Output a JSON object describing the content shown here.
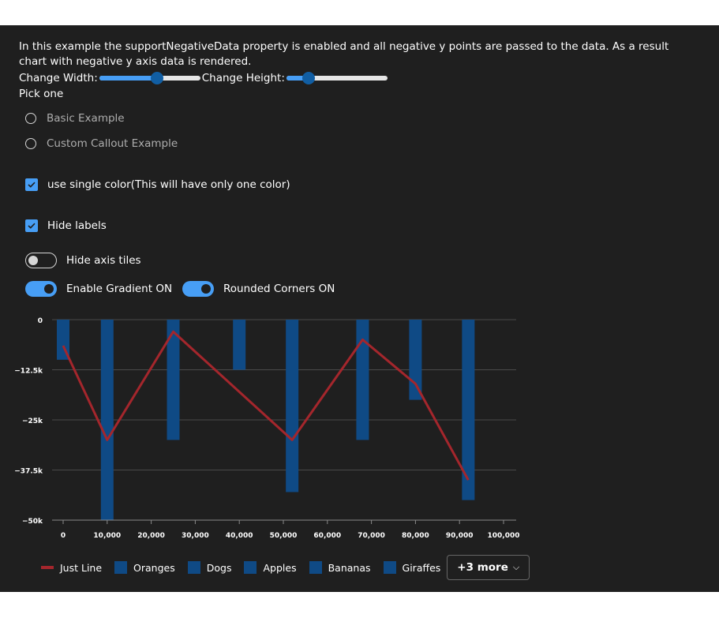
{
  "description": "In this example the supportNegativeData property is enabled and all negative y points are passed to the data. As a result chart with negative y axis data is rendered.",
  "controls": {
    "width_label": "Change Width:",
    "width_value": 0.57,
    "height_label": "Change Height:",
    "height_value": 0.22,
    "pick_label": "Pick one",
    "radio_options": [
      "Basic Example",
      "Custom Callout Example"
    ],
    "single_color_label": "use single color(This will have only one color)",
    "single_color_checked": true,
    "hide_labels_label": "Hide labels",
    "hide_labels_checked": true,
    "hide_axis_tiles_label": "Hide axis tiles",
    "hide_axis_tiles_on": false,
    "gradient_label": "Enable Gradient ON",
    "gradient_on": true,
    "rounded_label": "Rounded Corners ON",
    "rounded_on": true
  },
  "colors": {
    "bar": "#0f4a85",
    "line": "#a4262c",
    "accent": "#479ef5"
  },
  "chart_data": {
    "type": "bar",
    "x_ticks": [
      "0",
      "10,000",
      "20,000",
      "30,000",
      "40,000",
      "50,000",
      "60,000",
      "70,000",
      "80,000",
      "90,000",
      "100,000"
    ],
    "x_range": [
      0,
      100000
    ],
    "y_ticks": [
      "0",
      "−12.5k",
      "−25k",
      "−37.5k",
      "−50k"
    ],
    "y_range": [
      -50000,
      0
    ],
    "bars": {
      "x": [
        0,
        10000,
        25000,
        40000,
        52000,
        68000,
        80000,
        92000
      ],
      "values": [
        -10000,
        -50000,
        -30000,
        -12500,
        -43000,
        -30000,
        -20000,
        -45000
      ]
    },
    "line": {
      "name": "Just Line",
      "x": [
        0,
        10000,
        25000,
        52000,
        68000,
        80000,
        92000
      ],
      "values": [
        -6500,
        -30000,
        -3000,
        -30000,
        -5000,
        -16000,
        -40000
      ]
    },
    "legend": [
      {
        "name": "Just Line",
        "kind": "line"
      },
      {
        "name": "Oranges",
        "kind": "bar"
      },
      {
        "name": "Dogs",
        "kind": "bar"
      },
      {
        "name": "Apples",
        "kind": "bar"
      },
      {
        "name": "Bananas",
        "kind": "bar"
      },
      {
        "name": "Giraffes",
        "kind": "bar"
      }
    ],
    "more_label": "+3 more",
    "grid": true
  }
}
